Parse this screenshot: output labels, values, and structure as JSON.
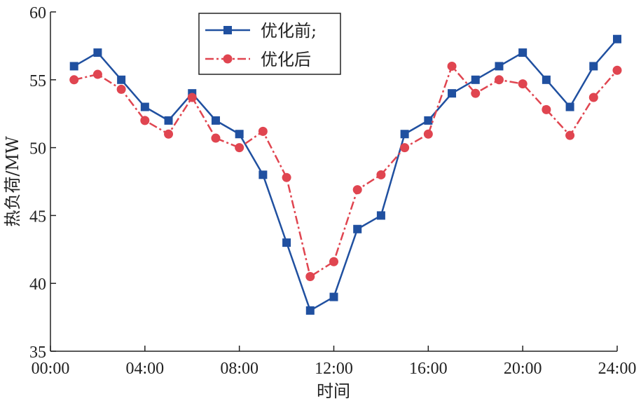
{
  "chart_data": {
    "type": "line",
    "x": [
      1,
      2,
      3,
      4,
      5,
      6,
      7,
      8,
      9,
      10,
      11,
      12,
      13,
      14,
      15,
      16,
      17,
      18,
      19,
      20,
      21,
      22,
      23,
      24
    ],
    "xlim": [
      0,
      24
    ],
    "ylim": [
      35,
      60
    ],
    "xticks": [
      0,
      4,
      8,
      12,
      16,
      20,
      24
    ],
    "xtick_labels": [
      "00:00",
      "04:00",
      "08:00",
      "12:00",
      "16:00",
      "20:00",
      "24:00"
    ],
    "yticks": [
      35,
      40,
      45,
      50,
      55,
      60
    ],
    "ytick_labels": [
      "35",
      "40",
      "45",
      "50",
      "55",
      "60"
    ],
    "xlabel": "时间",
    "ylabel": "热负荷/MW",
    "grid": false,
    "legend_position": "top-center",
    "series": [
      {
        "name": "优化前;",
        "color": "#2050a0",
        "marker": "square",
        "line_style": "solid",
        "values": [
          56,
          57,
          55,
          53,
          52,
          54,
          52,
          51,
          48,
          43,
          38,
          39,
          44,
          45,
          51,
          52,
          54,
          55,
          56,
          57,
          55,
          53,
          56,
          58
        ]
      },
      {
        "name": "优化后",
        "color": "#e04550",
        "marker": "circle",
        "line_style": "dash-dot",
        "values": [
          55.0,
          55.4,
          54.3,
          52.0,
          51.0,
          53.7,
          50.7,
          50.0,
          51.2,
          47.8,
          40.5,
          41.6,
          46.9,
          48.0,
          50.0,
          51.0,
          56.0,
          54.0,
          55.0,
          54.7,
          52.8,
          50.9,
          53.7,
          55.7
        ]
      }
    ]
  }
}
